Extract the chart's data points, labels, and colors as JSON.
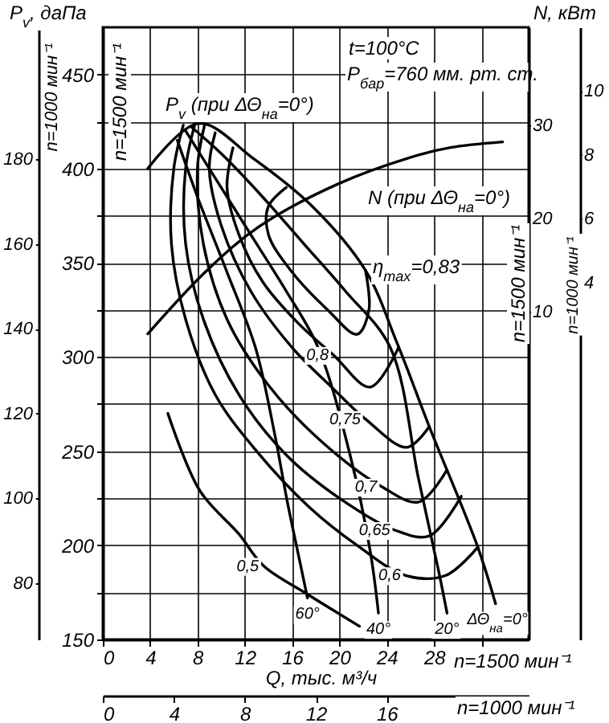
{
  "chart_data": [
    {
      "type": "line",
      "xlabel": "n=1500 мин⁻¹",
      "ylabel": "n=1500 мин⁻¹",
      "y3label": "n=1000 мин⁻¹",
      "x2label": "n=1000 мин⁻¹",
      "xlim": [
        0,
        36
      ],
      "xticks": [
        0,
        4,
        8,
        12,
        16,
        20,
        24,
        28,
        {
          "value": 32,
          "label": null
        }
      ],
      "ylim": [
        150,
        475
      ],
      "yticks": [
        150,
        {
          "value": 175,
          "label": null
        },
        200,
        {
          "value": 225,
          "label": null
        },
        250,
        {
          "value": 275,
          "label": null
        },
        300,
        {
          "value": 325,
          "label": null
        },
        350,
        {
          "value": 375,
          "label": null
        },
        400,
        {
          "value": 425,
          "label": null
        },
        450
      ],
      "y3lim": [
        66.7,
        211.1
      ],
      "y3ticks": [
        80,
        100,
        120,
        140,
        160,
        180
      ],
      "x2lim": [
        0,
        24
      ],
      "x2ticks": [
        0,
        4,
        8,
        12,
        16
      ],
      "grid": true,
      "series": [
        {
          "color": "#000000",
          "x": [
            15.5,
            14,
            14,
            16,
            19,
            21.5,
            22.5,
            22.2
          ],
          "values": [
            390,
            380,
            365,
            345,
            325,
            312,
            325,
            346
          ]
        },
        {
          "color": "#000000",
          "x": [
            11,
            10.5,
            11.5,
            13.5,
            16.5,
            19.5,
            22.6,
            25
          ],
          "values": [
            411,
            390,
            365,
            340,
            318,
            301,
            284,
            305
          ]
        },
        {
          "color": "#000000",
          "x": [
            9.5,
            9,
            10,
            12.5,
            16,
            19.5,
            22.2,
            25.7,
            27.6
          ],
          "values": [
            419,
            400,
            370,
            335,
            305,
            283,
            267,
            252,
            263
          ]
        },
        {
          "color": "#000000",
          "x": [
            8.6,
            8,
            8.5,
            10.5,
            14,
            18.5,
            23.6,
            26.7,
            29.1
          ],
          "values": [
            423,
            400,
            360,
            320,
            285,
            255,
            231,
            223,
            240
          ]
        },
        {
          "color": "#000000",
          "x": [
            7.8,
            7,
            7,
            8.5,
            11.5,
            15.5,
            20,
            24.7,
            27.6,
            30.3
          ],
          "values": [
            424,
            400,
            360,
            320,
            280,
            248,
            225,
            208,
            205,
            226
          ]
        },
        {
          "color": "#000000",
          "x": [
            6.8,
            6,
            5.8,
            7,
            9.5,
            13,
            17.5,
            21.5,
            25.6,
            29,
            31.7
          ],
          "values": [
            423,
            400,
            360,
            320,
            280,
            250,
            220,
            200,
            184,
            184,
            199
          ]
        },
        {
          "color": "#000000",
          "x": [
            5.5,
            8.2,
            11.5,
            13.6,
            17.3,
            21.7
          ],
          "values": [
            270,
            229,
            206,
            189,
            174,
            157
          ]
        },
        {
          "name": "60°",
          "color": "#000000",
          "x": [
            6.3,
            8,
            10.5,
            12.9,
            14.5,
            15.6,
            16.7,
            17.3
          ],
          "values": [
            415,
            385,
            345,
            305,
            260,
            223,
            190,
            172
          ]
        },
        {
          "name": "40°",
          "color": "#000000",
          "x": [
            7,
            9.5,
            12.5,
            15.5,
            18.2,
            20.9,
            22.6,
            23.3
          ],
          "values": [
            420,
            395,
            365,
            335,
            305,
            248,
            197,
            164
          ]
        },
        {
          "name": "20°",
          "color": "#000000",
          "x": [
            7.5,
            10,
            13.5,
            17,
            20.5,
            24.3,
            26.7,
            28.4,
            29.1
          ],
          "values": [
            422,
            408,
            385,
            360,
            335,
            305,
            235,
            186,
            164
          ]
        },
        {
          "name": "ΔΘ$_{на}$=0°",
          "color": "#000000",
          "x": [
            3.8,
            8.1,
            12.8,
            17.7,
            22.2,
            24.9,
            27.6,
            31.7,
            33.2
          ],
          "values": [
            400,
            424,
            405,
            380,
            346,
            307,
            263,
            199,
            169
          ]
        }
      ],
      "annotations": [
        "t=100°C",
        "P$_{бар}$=760 мм. рт. ст.",
        "P$_{v}$, даПа",
        "Q, тыс. м³/ч",
        "P$_{v}$ (при ΔΘ$_{на}$=0°)",
        "η$_{max}$=0,83",
        {
          "text": "0,8",
          "x": 19.5,
          "y": 301
        },
        {
          "text": "0,75",
          "x": 22.2,
          "y": 267
        },
        {
          "text": "0,7",
          "x": 23.6,
          "y": 231
        },
        {
          "text": "0,65",
          "x": 24.7,
          "y": 208
        },
        {
          "text": "0,6",
          "x": 25.6,
          "y": 184
        },
        {
          "text": "0,5",
          "x": 13.6,
          "y": 189
        }
      ]
    },
    {
      "type": "line",
      "tick_labels": "y",
      "xlim": [
        0,
        36
      ],
      "ylabel": "n=1500 мин⁻¹",
      "ylim": [
        -25.2,
        40.5
      ],
      "yticks": [
        10,
        20,
        30
      ],
      "y2label": "n=1000 мин⁻¹",
      "y2lim": [
        -7.2,
        12
      ],
      "y2ticks": [
        4,
        6,
        8,
        10
      ],
      "series": [
        {
          "color": "#000000",
          "x": [
            3.8,
            8.8,
            13.2,
            19.9,
            26.7,
            29.4,
            33.8
          ],
          "values": [
            7.6,
            14.4,
            19.1,
            23.7,
            26.8,
            27.6,
            28.2
          ]
        }
      ],
      "annotations": [
        "N, кВт",
        "N (при ΔΘ$_{на}$=0°)"
      ]
    }
  ]
}
